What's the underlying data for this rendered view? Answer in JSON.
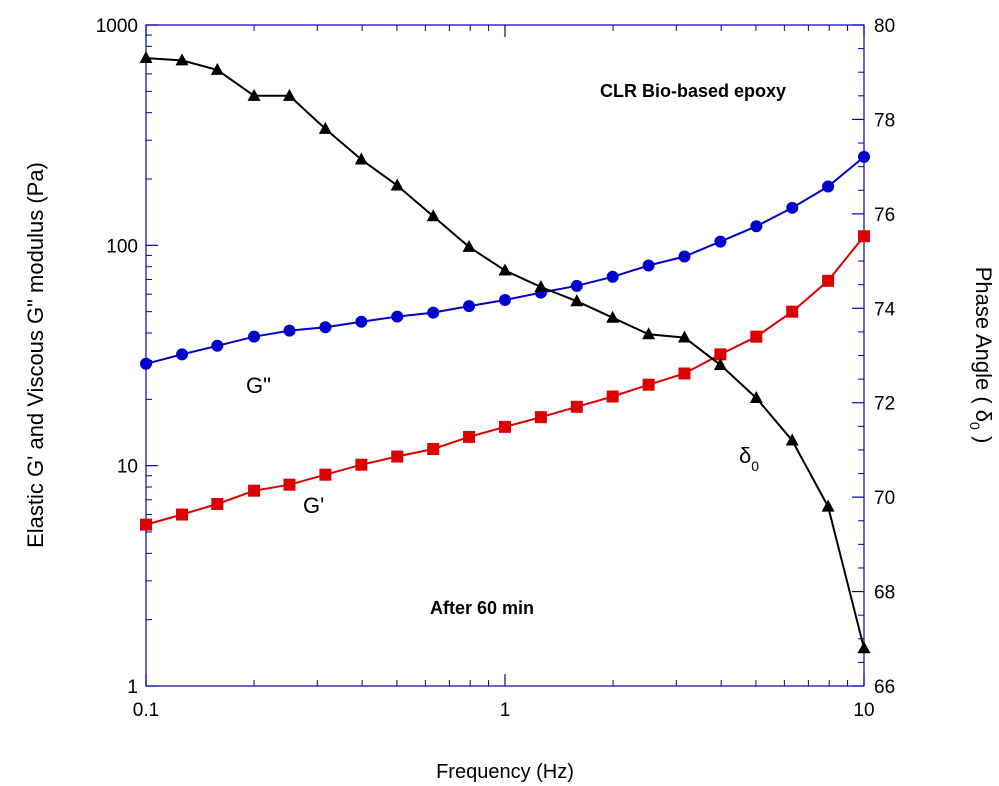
{
  "chart_data": {
    "type": "line",
    "title": "",
    "xlabel": "Frequency  (Hz)",
    "ylabel_left": "Elastic G' and Viscous G\" modulus (Pa)",
    "ylabel_right": "Phase Angle ( δ",
    "ylabel_right_sub": "0",
    "ylabel_right_close": " )",
    "x_scale": "log",
    "y_left_scale": "log",
    "y_right_scale": "linear",
    "xlim": [
      0.1,
      10
    ],
    "ylim_left": [
      1,
      1000
    ],
    "ylim_right": [
      66,
      80
    ],
    "x_ticks": [
      {
        "value": 0.1,
        "label": "0.1"
      },
      {
        "value": 1,
        "label": "1"
      },
      {
        "value": 10,
        "label": "10"
      }
    ],
    "y_left_ticks": [
      {
        "value": 1,
        "label": "1"
      },
      {
        "value": 10,
        "label": "10"
      },
      {
        "value": 100,
        "label": "100"
      },
      {
        "value": 1000,
        "label": "1000"
      }
    ],
    "y_right_ticks": [
      {
        "value": 66,
        "label": "66"
      },
      {
        "value": 68,
        "label": "68"
      },
      {
        "value": 70,
        "label": "70"
      },
      {
        "value": 72,
        "label": "72"
      },
      {
        "value": 74,
        "label": "74"
      },
      {
        "value": 76,
        "label": "76"
      },
      {
        "value": 78,
        "label": "78"
      },
      {
        "value": 80,
        "label": "80"
      }
    ],
    "grid": false,
    "x": [
      0.1,
      0.126,
      0.158,
      0.2,
      0.251,
      0.316,
      0.398,
      0.501,
      0.631,
      0.794,
      1.0,
      1.259,
      1.585,
      1.995,
      2.512,
      3.162,
      3.981,
      5.012,
      6.31,
      7.943,
      10.0
    ],
    "series": [
      {
        "axis": "left",
        "marker": "circle",
        "color": "#0000cc",
        "label": "G\"",
        "values": [
          29,
          32,
          35,
          38.5,
          41,
          42.5,
          45,
          47.5,
          49.5,
          53,
          56.5,
          61,
          65.5,
          72,
          81,
          89,
          104,
          122,
          148,
          185,
          252
        ]
      },
      {
        "axis": "left",
        "marker": "square",
        "color": "#dd0000",
        "label": "G'",
        "values": [
          5.4,
          6,
          6.7,
          7.7,
          8.2,
          9.1,
          10.1,
          11,
          11.9,
          13.5,
          15,
          16.6,
          18.5,
          20.6,
          23.3,
          26.2,
          32,
          38.5,
          50,
          69,
          110
        ]
      },
      {
        "axis": "right",
        "marker": "triangle",
        "color": "#000000",
        "label": "δ",
        "label_sub": "0",
        "values": [
          79.3,
          79.25,
          79.05,
          78.5,
          78.5,
          77.8,
          77.15,
          76.6,
          75.95,
          75.3,
          74.8,
          74.45,
          74.15,
          73.8,
          73.45,
          73.38,
          72.8,
          72.1,
          71.2,
          69.8,
          66.8
        ]
      }
    ],
    "annotations": [
      {
        "text": "CLR Bio-based epoxy"
      },
      {
        "text": "After 60 min"
      }
    ]
  }
}
